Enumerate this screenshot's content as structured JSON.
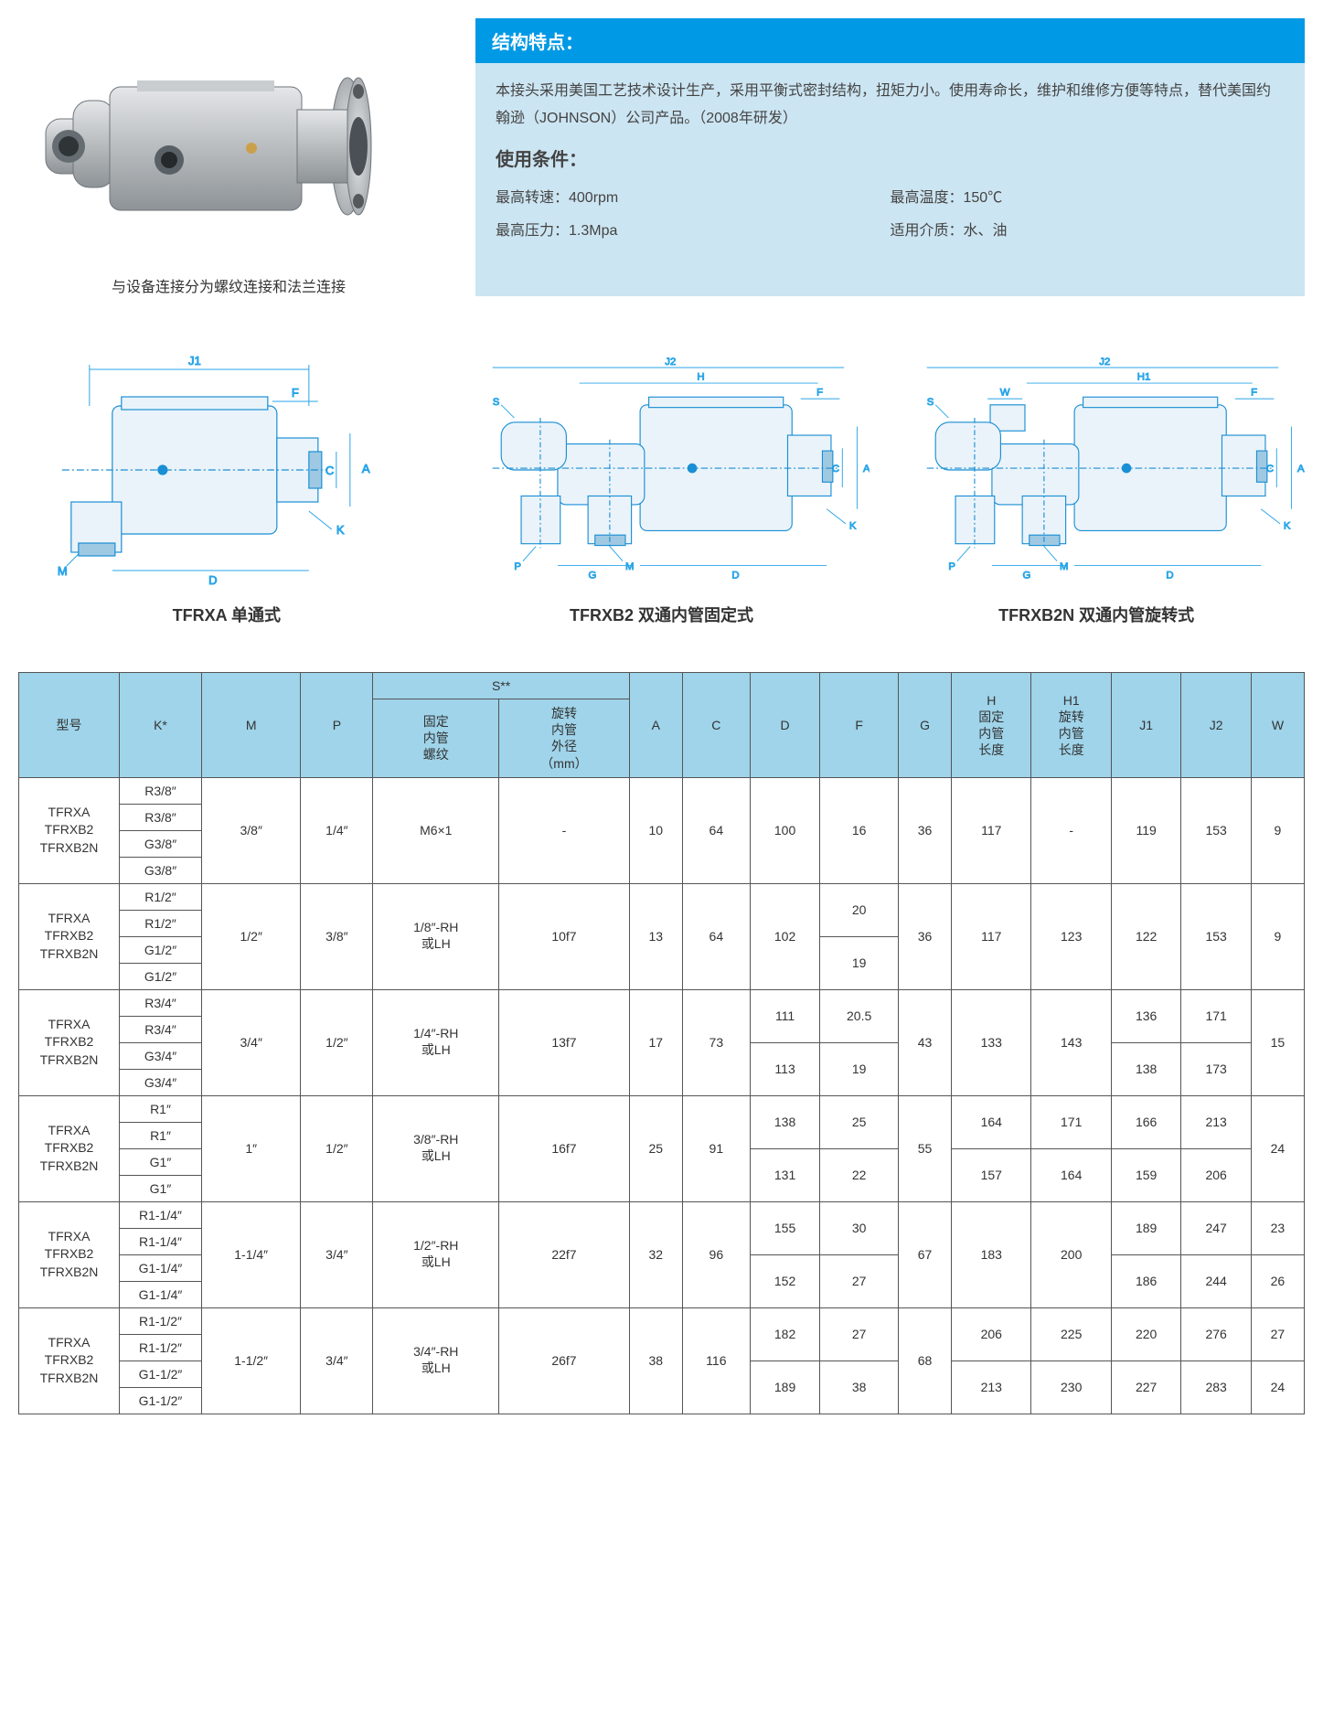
{
  "colors": {
    "header_bg": "#0099e5",
    "panel_bg": "#cce5f2",
    "table_header_bg": "#9fd4ea",
    "border": "#555555",
    "text": "#333333",
    "dim_line": "#2aa5e8",
    "drawing_stroke": "#1a8fd4",
    "drawing_fill": "#d8e8f2"
  },
  "photo_caption": "与设备连接分为螺纹连接和法兰连接",
  "features": {
    "title": "结构特点：",
    "body": "本接头采用美国工艺技术设计生产，采用平衡式密封结构，扭矩力小。使用寿命长，维护和维修方便等特点，替代美国约翰逊（JOHNSON）公司产品。（2008年研发）"
  },
  "conditions": {
    "title": "使用条件：",
    "items": [
      "最高转速：400rpm",
      "最高温度：150℃",
      "最高压力：1.3Mpa",
      "适用介质：水、油"
    ]
  },
  "diagrams": [
    {
      "label": "TFRXA 单通式",
      "dims": [
        "J1",
        "F",
        "A",
        "C",
        "K",
        "M",
        "D"
      ]
    },
    {
      "label": "TFRXB2 双通内管固定式",
      "dims": [
        "J2",
        "H",
        "F",
        "S",
        "A",
        "C",
        "K",
        "P",
        "G",
        "M",
        "D"
      ]
    },
    {
      "label": "TFRXB2N 双通内管旋转式",
      "dims": [
        "J2",
        "H1",
        "F",
        "S",
        "W",
        "A",
        "C",
        "K",
        "P",
        "G",
        "M",
        "D"
      ]
    }
  ],
  "table": {
    "header": {
      "model": "型号",
      "K": "K*",
      "M": "M",
      "P": "P",
      "S": "S**",
      "S_fixed": "固定\n内管\n螺纹",
      "S_rot": "旋转\n内管\n外径\n（mm）",
      "A": "A",
      "C": "C",
      "D": "D",
      "F": "F",
      "G": "G",
      "H": "H\n固定\n内管\n长度",
      "H1": "H1\n旋转\n内管\n长度",
      "J1": "J1",
      "J2": "J2",
      "W": "W"
    },
    "model_text": "TFRXA\nTFRXB2\nTFRXB2N",
    "groups": [
      {
        "K": [
          "R3/8″",
          "R3/8″",
          "G3/8″",
          "G3/8″"
        ],
        "M": "3/8″",
        "P": "1/4″",
        "Sf": "M6×1",
        "Sr": "-",
        "A": "10",
        "C": "64",
        "D": [
          "100"
        ],
        "F": [
          "16"
        ],
        "G": "36",
        "H": [
          "117"
        ],
        "H1": "-",
        "J1": [
          "119"
        ],
        "J2": [
          "153"
        ],
        "W": [
          "9"
        ]
      },
      {
        "K": [
          "R1/2″",
          "R1/2″",
          "G1/2″",
          "G1/2″"
        ],
        "M": "1/2″",
        "P": "3/8″",
        "Sf": "1/8″-RH\n或LH",
        "Sr": "10f7",
        "A": "13",
        "C": "64",
        "D": [
          "102"
        ],
        "F": [
          "20",
          "19"
        ],
        "G": "36",
        "H": [
          "117"
        ],
        "H1": "123",
        "J1": [
          "122"
        ],
        "J2": [
          "153"
        ],
        "W": [
          "9"
        ]
      },
      {
        "K": [
          "R3/4″",
          "R3/4″",
          "G3/4″",
          "G3/4″"
        ],
        "M": "3/4″",
        "P": "1/2″",
        "Sf": "1/4″-RH\n或LH",
        "Sr": "13f7",
        "A": "17",
        "C": "73",
        "D": [
          "111",
          "113"
        ],
        "F": [
          "20.5",
          "19"
        ],
        "G": "43",
        "H": [
          "133"
        ],
        "H1": "143",
        "J1": [
          "136",
          "138"
        ],
        "J2": [
          "171",
          "173"
        ],
        "W": [
          "15"
        ]
      },
      {
        "K": [
          "R1″",
          "R1″",
          "G1″",
          "G1″"
        ],
        "M": "1″",
        "P": "1/2″",
        "Sf": "3/8″-RH\n或LH",
        "Sr": "16f7",
        "A": "25",
        "C": "91",
        "D": [
          "138",
          "131"
        ],
        "F": [
          "25",
          "22"
        ],
        "G": "55",
        "H": [
          "164",
          "157"
        ],
        "H1_pair": [
          "171",
          "164"
        ],
        "J1": [
          "166",
          "159"
        ],
        "J2": [
          "213",
          "206"
        ],
        "W": [
          "24"
        ]
      },
      {
        "K": [
          "R1-1/4″",
          "R1-1/4″",
          "G1-1/4″",
          "G1-1/4″"
        ],
        "M": "1-1/4″",
        "P": "3/4″",
        "Sf": "1/2″-RH\n或LH",
        "Sr": "22f7",
        "A": "32",
        "C": "96",
        "D": [
          "155",
          "152"
        ],
        "F": [
          "30",
          "27"
        ],
        "G": "67",
        "H": [
          "183"
        ],
        "H1": "200",
        "J1": [
          "189",
          "186"
        ],
        "J2": [
          "247",
          "244"
        ],
        "W": [
          "23",
          "26"
        ]
      },
      {
        "K": [
          "R1-1/2″",
          "R1-1/2″",
          "G1-1/2″",
          "G1-1/2″"
        ],
        "M": "1-1/2″",
        "P": "3/4″",
        "Sf": "3/4″-RH\n或LH",
        "Sr": "26f7",
        "A": "38",
        "C": "116",
        "D": [
          "182",
          "189"
        ],
        "F": [
          "27",
          "38"
        ],
        "G": "68",
        "H": [
          "206",
          "213"
        ],
        "H1_pair": [
          "225",
          "230"
        ],
        "J1": [
          "220",
          "227"
        ],
        "J2": [
          "276",
          "283"
        ],
        "W": [
          "27",
          "24"
        ]
      }
    ]
  }
}
